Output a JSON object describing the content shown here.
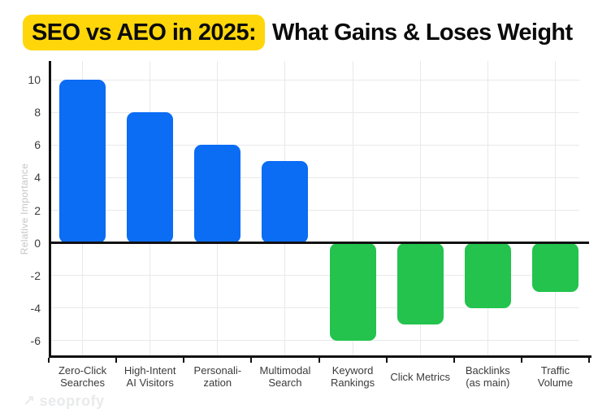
{
  "title": {
    "highlight": "SEO vs AEO in 2025:",
    "rest": "What Gains & Loses Weight"
  },
  "watermark": {
    "arrow": "↗",
    "text": "seoprofy"
  },
  "chart_data": {
    "type": "bar",
    "title": "SEO vs AEO in 2025: What Gains & Loses Weight",
    "xlabel": "",
    "ylabel": "Relative Importance",
    "categories": [
      "Zero-Click\nSearches",
      "High-Intent\nAI Visitors",
      "Personali-\nzation",
      "Multimodal\nSearch",
      "Keyword\nRankings",
      "Click Metrics",
      "Backlinks\n(as main)",
      "Traffic\nVolume"
    ],
    "values": [
      10,
      8,
      6,
      5,
      -6,
      -5,
      -4,
      -3
    ],
    "yticks": [
      10,
      8,
      6,
      4,
      2,
      0,
      -2,
      -4,
      -6
    ],
    "ylim": [
      -7.05,
      11.15
    ],
    "grid": true,
    "legend": false,
    "colors": {
      "positive_bar": "#0B6CF4",
      "negative_bar": "#23C34E",
      "gridline": "#E9E9E9",
      "axis_line": "#111111",
      "tick_text": "#3B3B3B",
      "y_axis_title_text": "#C6C6C6",
      "title_highlight_bg": "#FFD60A",
      "title_text": "#0B0B0B",
      "watermark_text": "#E9EAEB"
    }
  }
}
